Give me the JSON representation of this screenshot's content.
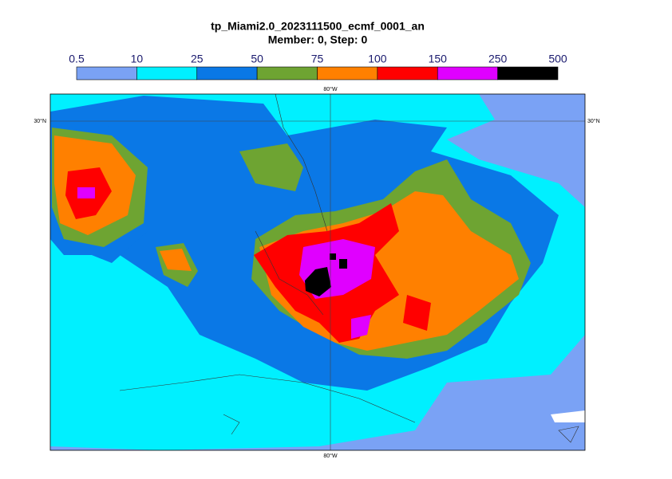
{
  "title": "tp_Miami2.0_2023111500_ecmf_0001_an",
  "subtitle": "Member: 0, Step: 0",
  "colorbar": {
    "levels": [
      0.5,
      10,
      25,
      50,
      75,
      100,
      150,
      250,
      500
    ],
    "colors": [
      "#7aa2f5",
      "#00f0ff",
      "#0a78e6",
      "#6ea432",
      "#ff8000",
      "#ff0000",
      "#e000ff",
      "#000000"
    ]
  },
  "axes": {
    "lon_top": "80°W",
    "lon_bottom": "80°W",
    "lat_left": "30°N",
    "lat_right": "30°N"
  }
}
